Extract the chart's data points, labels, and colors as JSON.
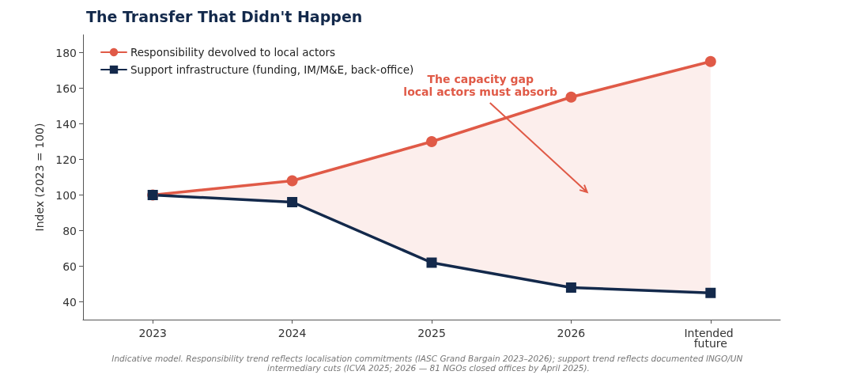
{
  "chart_data": {
    "type": "line",
    "title": "The Transfer That Didn't Happen",
    "ylabel": "Index (2023 = 100)",
    "categories": [
      "2023",
      "2024",
      "2025",
      "2026",
      "Intended future"
    ],
    "series": [
      {
        "name": "Responsibility devolved to local actors",
        "color": "#e05a47",
        "marker": "circle",
        "values": [
          100,
          108,
          130,
          155,
          175
        ],
        "lower": [
          100,
          96,
          62,
          48,
          45
        ],
        "upper": [
          100,
          108,
          130,
          155,
          175
        ]
      },
      {
        "name": "Support infrastructure (funding, IM/M&E, back-office)",
        "color": "#13294b",
        "marker": "square",
        "values": [
          100,
          96,
          62,
          48,
          45
        ]
      }
    ],
    "ylim": [
      30,
      190
    ],
    "yticks": [
      40,
      60,
      80,
      100,
      120,
      140,
      160,
      180
    ],
    "grid": false,
    "legend": "top left",
    "line_style": "solid",
    "annotations": [
      "The capacity gap\nlocal actors must absorb",
      "Indicative model. Responsibility trend reflects localisation commitments (IASC Grand Bargain 2023–2026); support trend reflects documented INGO/UN intermediary cuts (ICVA 2025; 2026 — 81 NGOs closed offices by April 2025)."
    ]
  }
}
